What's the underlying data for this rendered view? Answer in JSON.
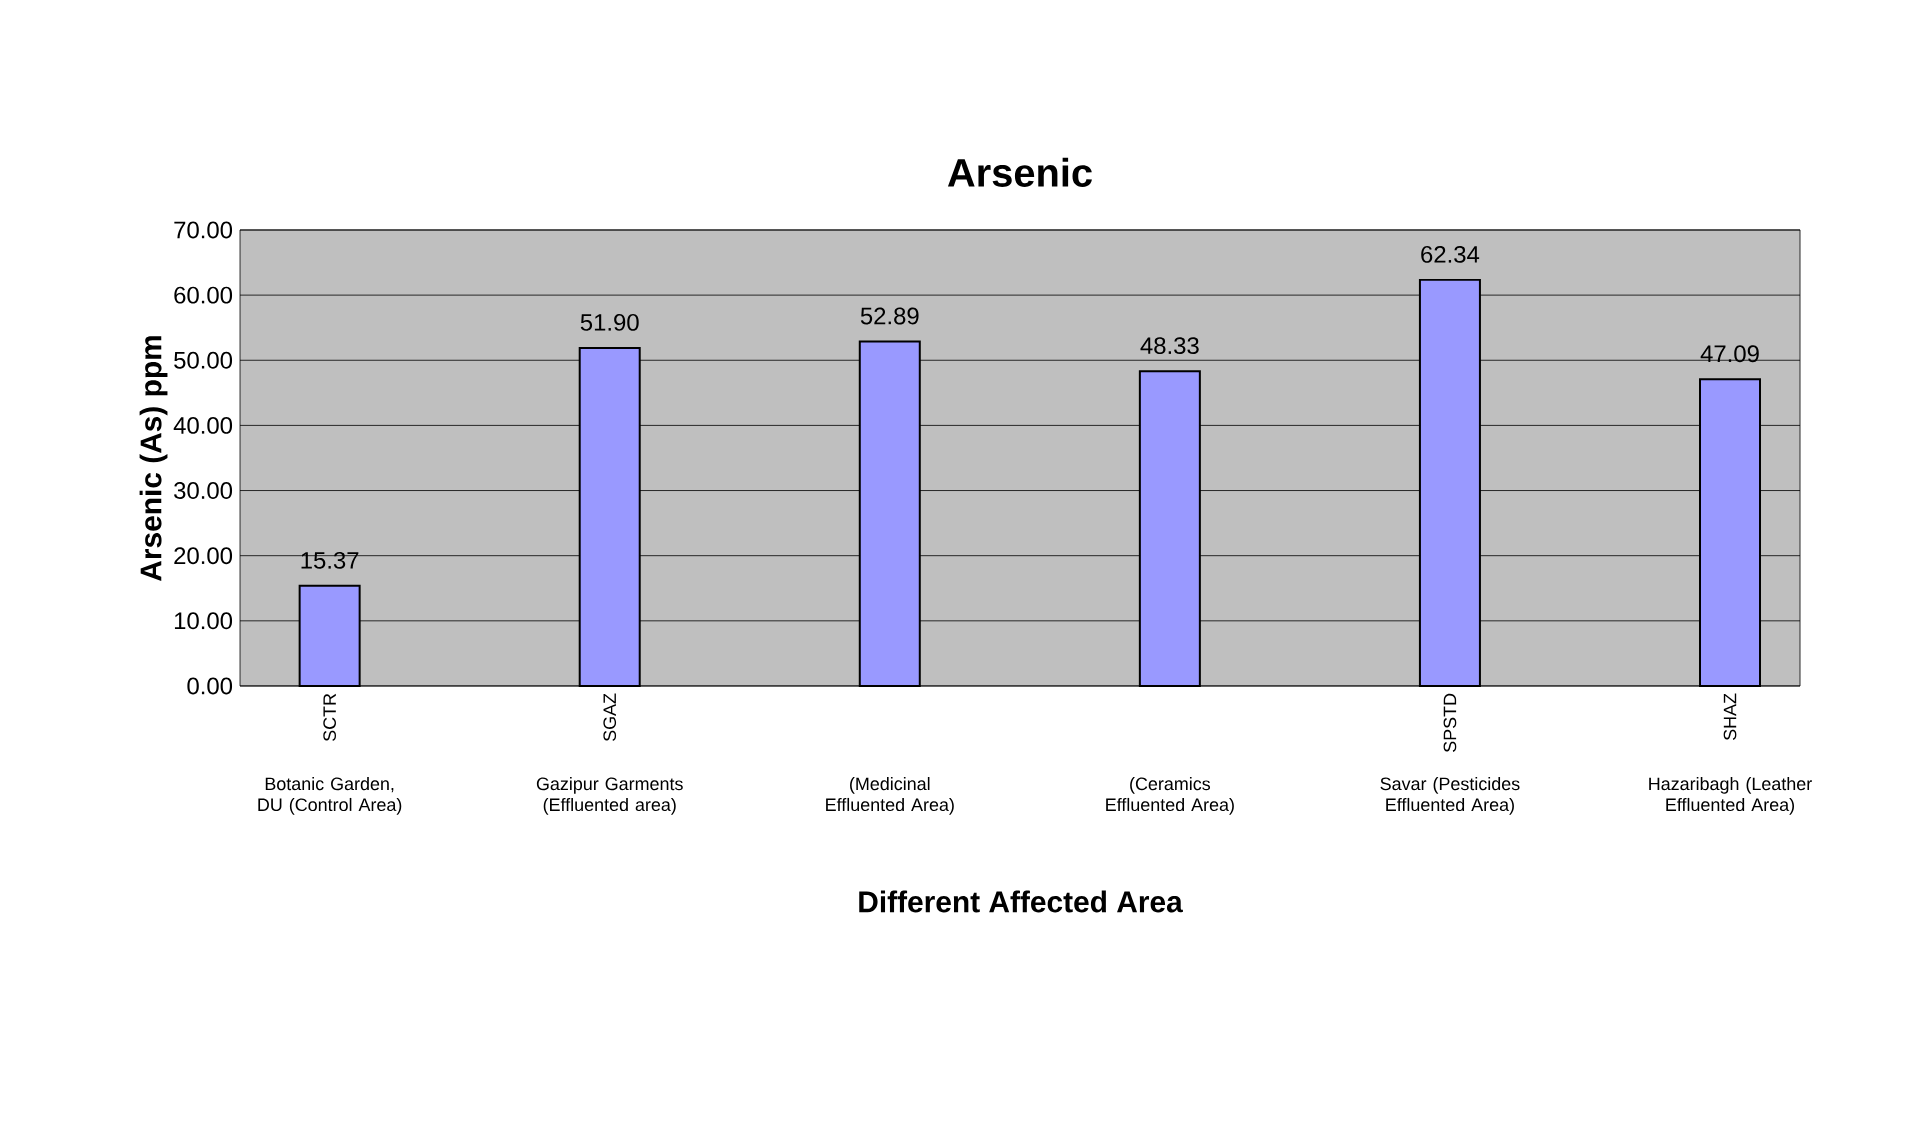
{
  "chart_data": {
    "type": "bar",
    "title": "Arsenic",
    "xlabel": "Different Affected Area",
    "ylabel": "Arsenic (As) ppm",
    "categories": [
      "SCTR",
      "SGAZ",
      null,
      null,
      "SPSTD",
      "SHAZ"
    ],
    "values": [
      15.37,
      51.9,
      52.89,
      48.33,
      62.34,
      47.09
    ],
    "value_labels": [
      "15.37",
      "51.90",
      "52.89",
      "48.33",
      "62.34",
      "47.09"
    ],
    "color": "#9999ff",
    "ylim": [
      0,
      70
    ],
    "yticks": [
      {
        "value": 0,
        "label": "0.00"
      },
      {
        "value": 10,
        "label": "10.00"
      },
      {
        "value": 20,
        "label": "20.00"
      },
      {
        "value": 30,
        "label": "30.00"
      },
      {
        "value": 40,
        "label": "40.00"
      },
      {
        "value": 50,
        "label": "50.00"
      },
      {
        "value": 60,
        "label": "60.00"
      },
      {
        "value": 70,
        "label": "70.00"
      }
    ],
    "grid": "y",
    "annotations": [
      "Botanic Garden, DU (Control Area)",
      "Gazipur Garments (Effluented area)",
      "(Medicinal Effluented Area)",
      "(Ceramics Effluented Area)",
      "Savar (Pesticides Effluented Area)",
      "Hazaribagh (Leather Effluented Area)"
    ]
  }
}
